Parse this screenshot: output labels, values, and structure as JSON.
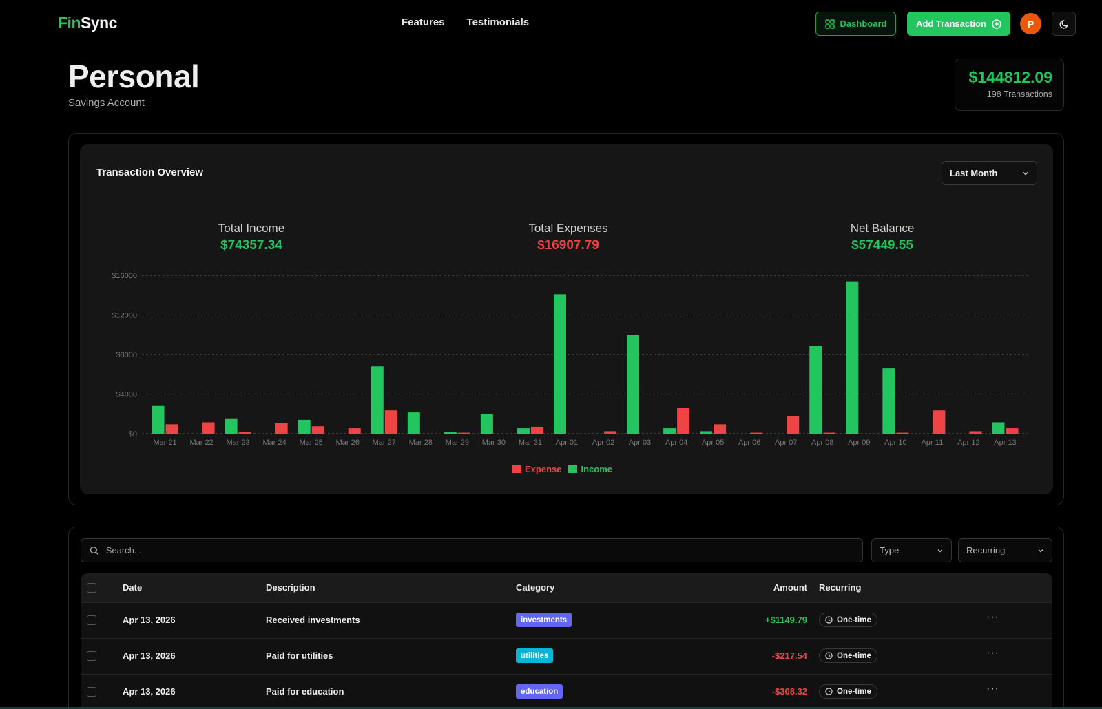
{
  "header": {
    "logo_part1": "Fin",
    "logo_part2": "Sync",
    "nav": [
      "Features",
      "Testimonials"
    ],
    "dashboard_label": "Dashboard",
    "add_transaction_label": "Add Transaction",
    "avatar_initial": "P",
    "icons": {
      "dashboard": "layout-grid-icon",
      "add": "plus-circle-icon",
      "theme": "moon-icon"
    }
  },
  "account": {
    "name": "Personal",
    "type": "Savings Account",
    "balance": "$144812.09",
    "transaction_count": "198 Transactions"
  },
  "overview": {
    "title": "Transaction Overview",
    "period": "Last Month",
    "total_income_label": "Total Income",
    "total_income": "$74357.34",
    "total_expenses_label": "Total Expenses",
    "total_expenses": "$16907.79",
    "net_balance_label": "Net Balance",
    "net_balance": "$57449.55"
  },
  "chart_data": {
    "type": "bar",
    "categories": [
      "Mar 21",
      "Mar 22",
      "Mar 23",
      "Mar 24",
      "Mar 25",
      "Mar 26",
      "Mar 27",
      "Mar 28",
      "Mar 29",
      "Mar 30",
      "Mar 31",
      "Apr 01",
      "Apr 02",
      "Apr 03",
      "Apr 04",
      "Apr 05",
      "Apr 06",
      "Apr 07",
      "Apr 08",
      "Apr 09",
      "Apr 10",
      "Apr 11",
      "Apr 12",
      "Apr 13"
    ],
    "series": [
      {
        "name": "Expense",
        "color": "#ef4444",
        "values": [
          950,
          1150,
          150,
          1050,
          750,
          550,
          2350,
          0,
          100,
          0,
          700,
          0,
          250,
          0,
          2600,
          950,
          100,
          1800,
          100,
          0,
          100,
          2350,
          250,
          550
        ]
      },
      {
        "name": "Income",
        "color": "#22c55e",
        "values": [
          2800,
          0,
          1550,
          0,
          1400,
          0,
          6800,
          2150,
          150,
          1950,
          550,
          14100,
          0,
          10000,
          550,
          250,
          0,
          0,
          8900,
          15400,
          6600,
          0,
          0,
          1150
        ]
      }
    ],
    "y_ticks": [
      "$0",
      "$4000",
      "$8000",
      "$12000",
      "$16000"
    ],
    "ylim": [
      0,
      16000
    ],
    "grid": true,
    "legend": "bottom-center"
  },
  "transactions": {
    "search_placeholder": "Search...",
    "type_filter": "Type",
    "recurring_filter": "Recurring",
    "columns": {
      "date": "Date",
      "description": "Description",
      "category": "Category",
      "amount": "Amount",
      "recurring": "Recurring"
    },
    "rows": [
      {
        "date": "Apr 13, 2026",
        "description": "Received investments",
        "category": "investments",
        "category_color": "#6366f1",
        "amount": "+$1149.79",
        "amount_color": "#22c55e",
        "recurring": "One-time"
      },
      {
        "date": "Apr 13, 2026",
        "description": "Paid for utilities",
        "category": "utilities",
        "category_color": "#06b6d4",
        "amount": "-$217.54",
        "amount_color": "#ef4444",
        "recurring": "One-time"
      },
      {
        "date": "Apr 13, 2026",
        "description": "Paid for education",
        "category": "education",
        "category_color": "#6366f1",
        "amount": "-$308.32",
        "amount_color": "#ef4444",
        "recurring": "One-time"
      }
    ]
  }
}
